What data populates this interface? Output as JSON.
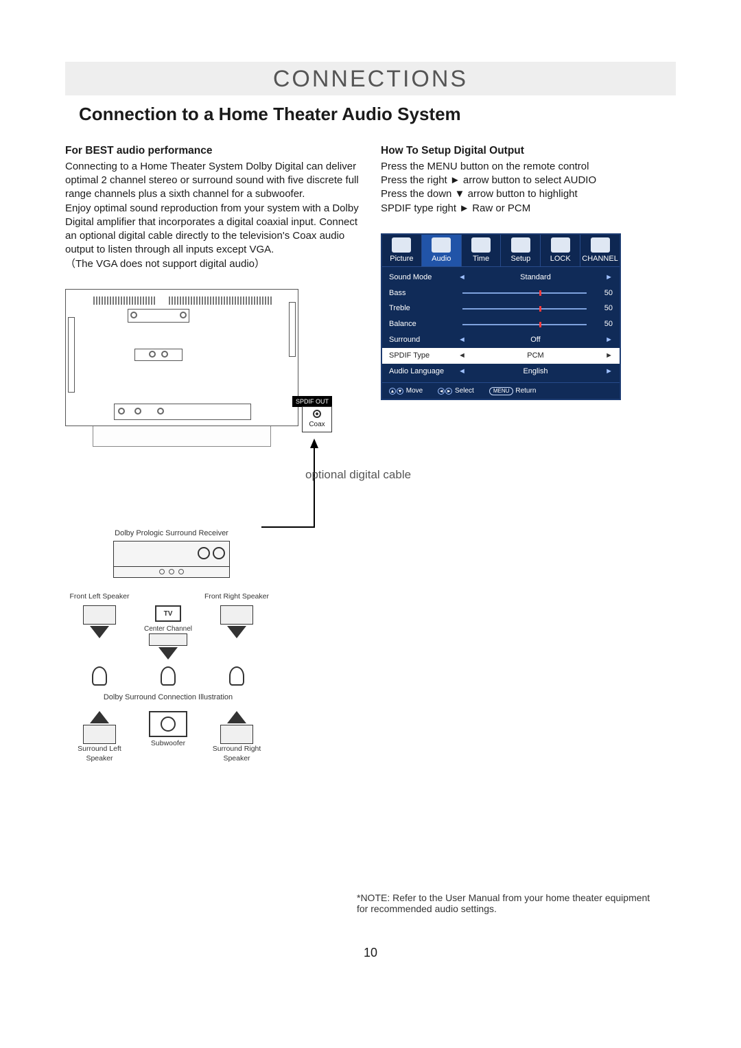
{
  "page": {
    "section_title": "CONNECTIONS",
    "subtitle": "Connection to a Home Theater Audio System",
    "page_number": "10"
  },
  "left_text": {
    "heading": "For BEST audio performance",
    "body1": "Connecting to a Home Theater System Dolby Digital can deliver optimal 2 channel stereo or surround sound with five discrete full range channels plus a sixth channel for a subwoofer.",
    "body2": "Enjoy optimal sound reproduction from your system with a Dolby Digital amplifier that incorporates a digital coaxial input. Connect an optional digital cable directly to the television's Coax audio output to listen through all inputs except VGA.",
    "body3": "（The VGA does not support digital audio）"
  },
  "right_text": {
    "heading": "How To Setup Digital Output",
    "line1": "Press the MENU button on the remote control",
    "line2": "Press the right ► arrow button to select AUDIO",
    "line3": "Press the down ▼ arrow button to highlight",
    "line4": "SPDIF type right ► Raw or PCM"
  },
  "osd": {
    "tabs": [
      "Picture",
      "Audio",
      "Time",
      "Setup",
      "LOCK",
      "CHANNEL"
    ],
    "active_tab_index": 1,
    "rows": {
      "sound_mode": {
        "label": "Sound Mode",
        "value": "Standard"
      },
      "bass": {
        "label": "Bass",
        "value": 50,
        "slider_percent": 62
      },
      "treble": {
        "label": "Treble",
        "value": 50,
        "slider_percent": 62
      },
      "balance": {
        "label": "Balance",
        "value": 50,
        "slider_percent": 62
      },
      "surround": {
        "label": "Surround",
        "value": "Off"
      },
      "spdif": {
        "label": "SPDIF Type",
        "value": "PCM"
      },
      "audio_lang": {
        "label": "Audio Language",
        "value": "English"
      }
    },
    "footer": {
      "move": "Move",
      "select": "Select",
      "return": "Return",
      "return_btn": "MENU"
    },
    "colors": {
      "panel_bg": "#102b58",
      "panel_border": "#1b3a70",
      "tab_bg": "#0e2752",
      "tab_active_bg": "#2154a8",
      "divider": "#274b8c",
      "arrow": "#9fc1ff",
      "slider_track": "#7fa3de",
      "slider_thumb": "#ff3b3b",
      "white_row_bg": "#ffffff",
      "white_row_text": "#222222"
    }
  },
  "diagram": {
    "spdif_out_label": "SPDIF OUT",
    "coax_label": "Coax",
    "cable_label": "optional digital cable",
    "receiver_title": "Dolby Prologic\nSurround Receiver",
    "tv_label": "TV",
    "center_label": "Center Channel",
    "front_left_label": "Front Left\nSpeaker",
    "front_right_label": "Front Right\nSpeaker",
    "illustration_label": "Dolby Surround\nConnection Illustration",
    "surround_left_label": "Surround Left Speaker",
    "surround_right_label": "Surround Right Speaker",
    "subwoofer_label": "Subwoofer"
  },
  "note": "*NOTE: Refer to the User Manual from your home theater equipment for recommended audio settings."
}
